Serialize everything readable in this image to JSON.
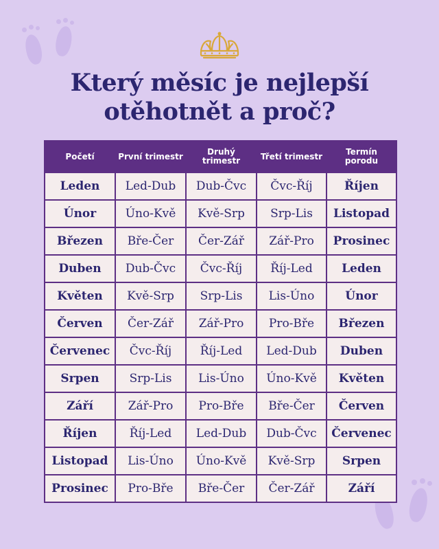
{
  "title_line1": "Který měsíc je nejlepší",
  "title_line2": "otěhotnět a proč?",
  "headers": [
    "Početí",
    "První trimestr",
    "Druhý trimestr",
    "Třetí trimestr",
    "Termín porodu"
  ],
  "rows": [
    [
      "Leden",
      "Led-Dub",
      "Dub-Čvc",
      "Čvc-Říj",
      "Říjen"
    ],
    [
      "Únor",
      "Úno-Kvě",
      "Kvě-Srp",
      "Srp-Lis",
      "Listopad"
    ],
    [
      "Březen",
      "Bře-Čer",
      "Čer-Zář",
      "Zář-Pro",
      "Prosinec"
    ],
    [
      "Duben",
      "Dub-Čvc",
      "Čvc-Říj",
      "Říj-Led",
      "Leden"
    ],
    [
      "Květen",
      "Kvě-Srp",
      "Srp-Lis",
      "Lis-Úno",
      "Únor"
    ],
    [
      "Červen",
      "Čer-Zář",
      "Zář-Pro",
      "Pro-Bře",
      "Březen"
    ],
    [
      "Červenec",
      "Čvc-Říj",
      "Říj-Led",
      "Led-Dub",
      "Duben"
    ],
    [
      "Srpen",
      "Srp-Lis",
      "Lis-Úno",
      "Úno-Kvě",
      "Květen"
    ],
    [
      "Září",
      "Zář-Pro",
      "Pro-Bře",
      "Bře-Čer",
      "Červen"
    ],
    [
      "Říjen",
      "Říj-Led",
      "Led-Dub",
      "Dub-Čvc",
      "Červenec"
    ],
    [
      "Listopad",
      "Lis-Úno",
      "Úno-Kvě",
      "Kvě-Srp",
      "Srpen"
    ],
    [
      "Prosinec",
      "Pro-Bře",
      "Bře-Čer",
      "Čer-Zář",
      "Září"
    ]
  ],
  "colors": {
    "header_bg": "#5d2f84",
    "text": "#2c2670",
    "cell_bg": "#f5eded",
    "page_bg": "#dcccf0",
    "crown": "#d9a83a"
  },
  "icons": [
    "baby-footprints-icon",
    "crown-icon"
  ]
}
